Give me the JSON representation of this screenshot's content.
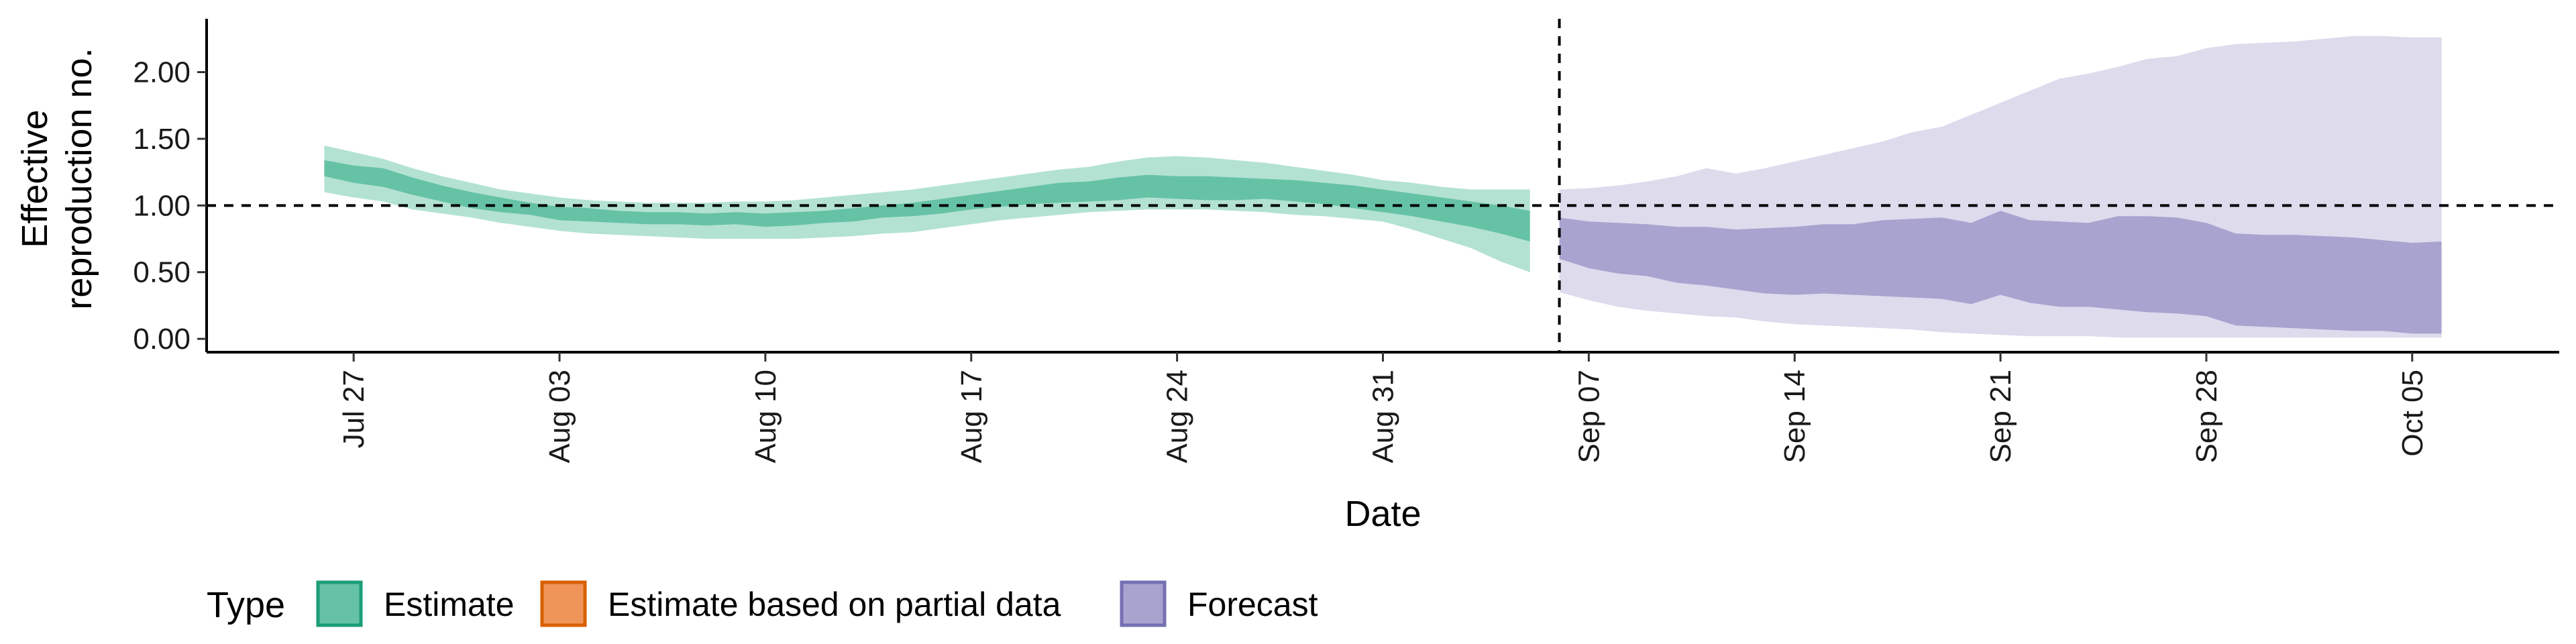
{
  "chart_data": {
    "type": "area",
    "xlabel": "Date",
    "ylabel_lines": [
      "Effective",
      "reproduction no."
    ],
    "ylim": [
      -0.1,
      2.4
    ],
    "yticks": [
      0.0,
      0.5,
      1.0,
      1.5,
      2.0
    ],
    "ytick_labels": [
      "0.00",
      "0.50",
      "1.00",
      "1.50",
      "2.00"
    ],
    "xlim": [
      "2020-07-22",
      "2020-10-10"
    ],
    "xticks": [
      "2020-07-27",
      "2020-08-03",
      "2020-08-10",
      "2020-08-17",
      "2020-08-24",
      "2020-08-31",
      "2020-09-07",
      "2020-09-14",
      "2020-09-21",
      "2020-09-28",
      "2020-10-05"
    ],
    "xtick_labels": [
      "Jul 27",
      "Aug 03",
      "Aug 10",
      "Aug 17",
      "Aug 24",
      "Aug 31",
      "Sep 07",
      "Sep 14",
      "Sep 21",
      "Sep 28",
      "Oct 05"
    ],
    "reference_lines": {
      "horizontal_y": 1.0,
      "vertical_date": "2020-09-06"
    },
    "grid": false,
    "legend": {
      "title": "Type",
      "position": "bottom-left",
      "items": [
        {
          "label": "Estimate",
          "fill": "#66c2a5",
          "border": "#1b9e77"
        },
        {
          "label": "Estimate based on partial data",
          "fill": "#f0955a",
          "border": "#d95f02"
        },
        {
          "label": "Forecast",
          "fill": "#a9a3d0",
          "border": "#7570b3"
        }
      ]
    },
    "series": [
      {
        "name": "Estimate",
        "color": "#1b9e77",
        "x": [
          "2020-07-26",
          "2020-07-27",
          "2020-07-28",
          "2020-07-29",
          "2020-07-30",
          "2020-07-31",
          "2020-08-01",
          "2020-08-02",
          "2020-08-03",
          "2020-08-04",
          "2020-08-05",
          "2020-08-06",
          "2020-08-07",
          "2020-08-08",
          "2020-08-09",
          "2020-08-10",
          "2020-08-11",
          "2020-08-12",
          "2020-08-13",
          "2020-08-14",
          "2020-08-15",
          "2020-08-16",
          "2020-08-17",
          "2020-08-18",
          "2020-08-19",
          "2020-08-20",
          "2020-08-21",
          "2020-08-22",
          "2020-08-23",
          "2020-08-24",
          "2020-08-25",
          "2020-08-26",
          "2020-08-27",
          "2020-08-28",
          "2020-08-29",
          "2020-08-30",
          "2020-08-31",
          "2020-09-01",
          "2020-09-02",
          "2020-09-03",
          "2020-09-04",
          "2020-09-05"
        ],
        "lower_90": [
          1.1,
          1.06,
          1.03,
          0.97,
          0.94,
          0.91,
          0.87,
          0.84,
          0.81,
          0.79,
          0.78,
          0.77,
          0.76,
          0.75,
          0.75,
          0.75,
          0.75,
          0.76,
          0.77,
          0.79,
          0.8,
          0.83,
          0.86,
          0.89,
          0.91,
          0.93,
          0.95,
          0.96,
          0.97,
          0.97,
          0.97,
          0.96,
          0.95,
          0.93,
          0.92,
          0.9,
          0.88,
          0.82,
          0.75,
          0.68,
          0.58,
          0.5
        ],
        "upper_90": [
          1.45,
          1.4,
          1.35,
          1.28,
          1.22,
          1.17,
          1.12,
          1.09,
          1.06,
          1.04,
          1.03,
          1.02,
          1.02,
          1.02,
          1.03,
          1.03,
          1.04,
          1.06,
          1.08,
          1.1,
          1.12,
          1.15,
          1.18,
          1.21,
          1.24,
          1.27,
          1.29,
          1.33,
          1.36,
          1.37,
          1.36,
          1.34,
          1.32,
          1.29,
          1.26,
          1.23,
          1.19,
          1.17,
          1.14,
          1.12,
          1.12,
          1.12
        ],
        "lower_50": [
          1.22,
          1.17,
          1.14,
          1.08,
          1.03,
          0.98,
          0.95,
          0.93,
          0.89,
          0.88,
          0.87,
          0.86,
          0.86,
          0.85,
          0.86,
          0.84,
          0.85,
          0.87,
          0.88,
          0.91,
          0.92,
          0.94,
          0.97,
          0.99,
          1.01,
          1.02,
          1.03,
          1.04,
          1.06,
          1.05,
          1.04,
          1.04,
          1.05,
          1.03,
          1.01,
          0.98,
          0.95,
          0.92,
          0.88,
          0.84,
          0.79,
          0.73
        ],
        "upper_50": [
          1.34,
          1.3,
          1.28,
          1.21,
          1.15,
          1.1,
          1.06,
          1.02,
          0.99,
          0.98,
          0.96,
          0.95,
          0.95,
          0.94,
          0.95,
          0.94,
          0.95,
          0.96,
          0.98,
          1.0,
          1.02,
          1.05,
          1.08,
          1.11,
          1.14,
          1.17,
          1.18,
          1.21,
          1.23,
          1.22,
          1.22,
          1.21,
          1.2,
          1.19,
          1.17,
          1.15,
          1.12,
          1.09,
          1.06,
          1.03,
          1.0,
          0.96
        ]
      },
      {
        "name": "Forecast",
        "color": "#7570b3",
        "x": [
          "2020-09-06",
          "2020-09-07",
          "2020-09-08",
          "2020-09-09",
          "2020-09-10",
          "2020-09-11",
          "2020-09-12",
          "2020-09-13",
          "2020-09-14",
          "2020-09-15",
          "2020-09-16",
          "2020-09-17",
          "2020-09-18",
          "2020-09-19",
          "2020-09-20",
          "2020-09-21",
          "2020-09-22",
          "2020-09-23",
          "2020-09-24",
          "2020-09-25",
          "2020-09-26",
          "2020-09-27",
          "2020-09-28",
          "2020-09-29",
          "2020-09-30",
          "2020-10-01",
          "2020-10-02",
          "2020-10-03",
          "2020-10-04",
          "2020-10-05",
          "2020-10-06"
        ],
        "lower_90": [
          0.35,
          0.29,
          0.24,
          0.21,
          0.19,
          0.17,
          0.16,
          0.13,
          0.11,
          0.1,
          0.09,
          0.08,
          0.07,
          0.05,
          0.04,
          0.03,
          0.02,
          0.02,
          0.02,
          0.01,
          0.01,
          0.01,
          0.01,
          0.01,
          0.01,
          0.01,
          0.01,
          0.01,
          0.01,
          0.01,
          0.01
        ],
        "upper_90": [
          1.12,
          1.13,
          1.15,
          1.18,
          1.22,
          1.28,
          1.24,
          1.28,
          1.33,
          1.38,
          1.43,
          1.48,
          1.55,
          1.59,
          1.68,
          1.77,
          1.86,
          1.95,
          1.99,
          2.04,
          2.1,
          2.12,
          2.18,
          2.21,
          2.22,
          2.23,
          2.25,
          2.27,
          2.27,
          2.26,
          2.26
        ],
        "lower_50": [
          0.6,
          0.53,
          0.49,
          0.47,
          0.42,
          0.4,
          0.37,
          0.34,
          0.33,
          0.34,
          0.33,
          0.32,
          0.31,
          0.3,
          0.26,
          0.33,
          0.27,
          0.24,
          0.24,
          0.22,
          0.2,
          0.19,
          0.17,
          0.1,
          0.09,
          0.08,
          0.07,
          0.06,
          0.06,
          0.04,
          0.04
        ],
        "upper_50": [
          0.91,
          0.88,
          0.87,
          0.86,
          0.84,
          0.84,
          0.82,
          0.83,
          0.84,
          0.86,
          0.86,
          0.89,
          0.9,
          0.91,
          0.87,
          0.96,
          0.89,
          0.88,
          0.87,
          0.92,
          0.92,
          0.91,
          0.87,
          0.79,
          0.78,
          0.78,
          0.77,
          0.76,
          0.74,
          0.72,
          0.73
        ]
      }
    ]
  }
}
